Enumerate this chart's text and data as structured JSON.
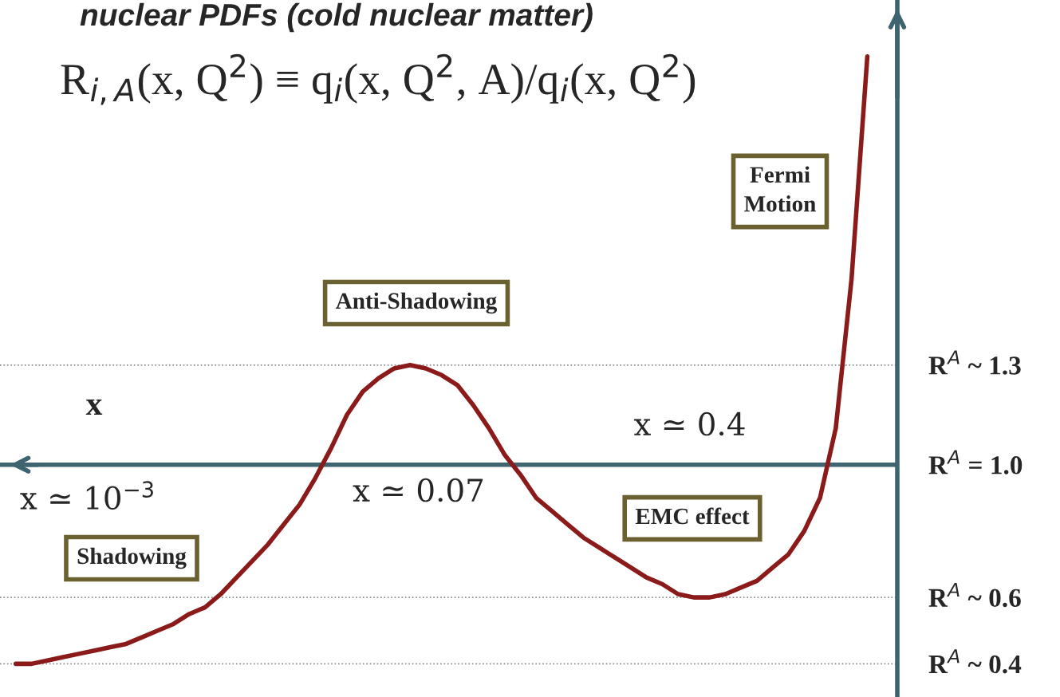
{
  "chart_data": {
    "type": "line",
    "title": "nuclear PDFs (cold nuclear matter)",
    "subtitle": "R$_{i,A}$(x, Q$^{2}$) ≡ q$_{i}$(x, Q$^{2}$, A)/q$_{i}$(x, Q$^{2}$)",
    "xlabel": "x",
    "categories": [
      null,
      null,
      null,
      null,
      null,
      null,
      null,
      null,
      null,
      null,
      null,
      null,
      null,
      null,
      null,
      null,
      null,
      null,
      null,
      null,
      null,
      null,
      null,
      null,
      null,
      null,
      null,
      null,
      null,
      null,
      null,
      null,
      null,
      null,
      null,
      null,
      null,
      null,
      null,
      null,
      null,
      null,
      null,
      null,
      null,
      null,
      null,
      null,
      null,
      null,
      null,
      null,
      null,
      null,
      null
    ],
    "series": [
      {
        "color": "#8b1a1a",
        "values": [
          0.4,
          0.4,
          0.41,
          0.42,
          0.43,
          0.44,
          0.45,
          0.46,
          0.48,
          0.5,
          0.52,
          0.55,
          0.57,
          0.61,
          0.66,
          0.71,
          0.76,
          0.82,
          0.88,
          0.96,
          1.05,
          1.15,
          1.22,
          1.26,
          1.29,
          1.3,
          1.29,
          1.27,
          1.24,
          1.18,
          1.11,
          1.03,
          0.97,
          0.9,
          0.86,
          0.82,
          0.78,
          0.75,
          0.72,
          0.69,
          0.66,
          0.64,
          0.61,
          0.6,
          0.6,
          0.61,
          0.63,
          0.65,
          0.69,
          0.73,
          0.8,
          0.9,
          1.11,
          1.56,
          2.23
        ]
      }
    ],
    "ylim": [
      0.3,
      2.4
    ],
    "yticks": [
      {
        "value": 1.3,
        "label": "R$^{A}$ ~ 1.3"
      },
      {
        "value": 1.0,
        "label": "R$^{A}$ = 1.0"
      },
      {
        "value": 0.6,
        "label": "R$^{A}$ ~ 0.6"
      },
      {
        "value": 0.4,
        "label": "R$^{A}$ ~ 0.4"
      }
    ],
    "ref_lines": [
      {
        "axis": "y",
        "value": 1.3,
        "color": "#8c8c8c",
        "line_style": "dotted"
      },
      {
        "axis": "y",
        "value": 1.0,
        "color": "#3e6470",
        "line_style": "solid"
      },
      {
        "axis": "y",
        "value": 0.6,
        "color": "#8c8c8c",
        "line_style": "dotted"
      },
      {
        "axis": "y",
        "value": 0.4,
        "color": "#8c8c8c",
        "line_style": "dotted"
      }
    ],
    "annotations": [
      "x ≃ 10$^{−3}$",
      "x ≃ 0.07",
      "x ≃ 0.4",
      "Shadowing",
      "Anti-Shadowing",
      "EMC effect",
      "Fermi\nMotion"
    ],
    "tick_labels": "y",
    "grid": false,
    "legend": false,
    "marker": "none",
    "line_style": "solid"
  }
}
